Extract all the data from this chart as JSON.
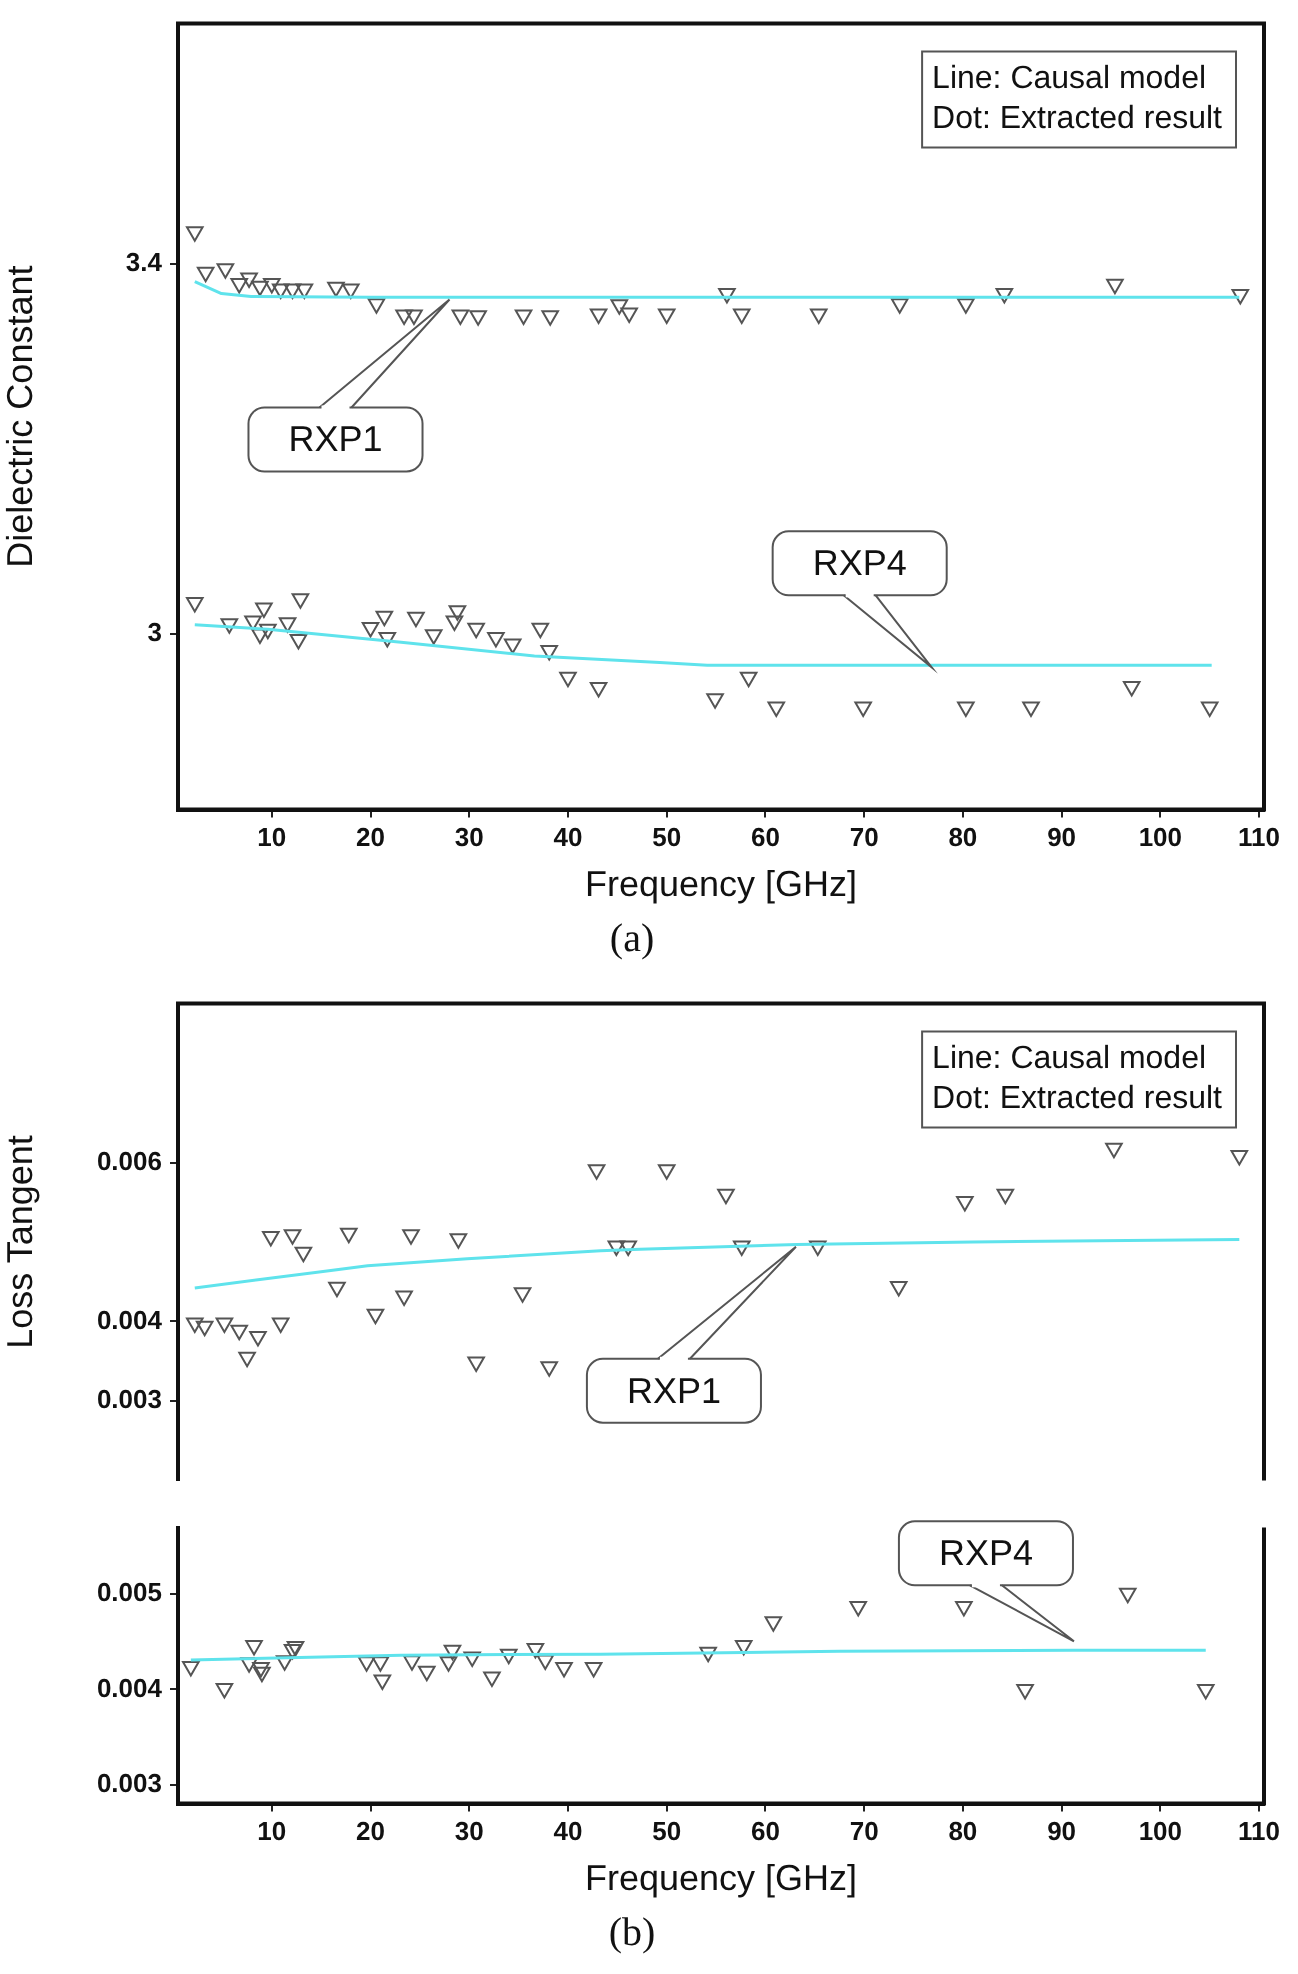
{
  "chart_data": [
    {
      "type": "scatter",
      "title": "(a)",
      "xlabel": "Frequency [GHz]",
      "ylabel": "Dielectric Constant",
      "xlim": [
        0.5,
        110.5
      ],
      "xticks": [
        10,
        20,
        30,
        40,
        50,
        60,
        70,
        80,
        90,
        100,
        110
      ],
      "ylim": [
        2.81,
        3.66
      ],
      "yticks": [
        3.0,
        3.4
      ],
      "grid": false,
      "legend": false,
      "marker": "triangle",
      "annotations": [
        "Line: Causal model",
        "Dot: Extracted result",
        "RXP1",
        "RXP4"
      ],
      "series": [
        {
          "type": "line",
          "marker": "none",
          "color": "#5fe3ec",
          "x": [
            2.2,
            4.9,
            7.9,
            20,
            108
          ],
          "values": [
            3.381,
            3.368,
            3.365,
            3.364,
            3.364
          ]
        },
        {
          "type": "line",
          "marker": "none",
          "color": "#5fe3ec",
          "x": [
            2.2,
            9.6,
            23.1,
            36.6,
            49.3,
            54.1,
            105.2
          ],
          "values": [
            3.01,
            3.005,
            2.991,
            2.976,
            2.969,
            2.966,
            2.966
          ]
        },
        {
          "color": "#555555",
          "x": [
            2.2,
            3.3,
            5.3,
            6.7,
            7.7,
            8.8,
            10.0,
            10.9,
            12.1,
            13.3,
            16.5,
            18.0,
            20.6,
            23.4,
            24.4,
            29.1,
            30.9,
            35.5,
            38.2,
            43.1,
            45.2,
            46.2,
            50.0,
            56.1,
            57.6,
            65.4,
            73.6,
            80.3,
            84.2,
            95.4,
            108.1
          ],
          "values": [
            3.435,
            3.391,
            3.395,
            3.379,
            3.385,
            3.376,
            3.379,
            3.373,
            3.373,
            3.373,
            3.375,
            3.373,
            3.357,
            3.345,
            3.345,
            3.345,
            3.344,
            3.345,
            3.344,
            3.346,
            3.356,
            3.347,
            3.346,
            3.368,
            3.346,
            3.346,
            3.357,
            3.357,
            3.368,
            3.378,
            3.367
          ]
        },
        {
          "color": "#555555",
          "x": [
            2.2,
            5.7,
            8.1,
            9.2,
            8.8,
            9.6,
            11.6,
            12.7,
            12.9,
            20.0,
            21.4,
            21.7,
            24.6,
            26.4,
            28.5,
            28.8,
            30.7,
            32.7,
            34.4,
            37.2,
            38.1,
            40.0,
            43.1,
            54.9,
            58.3,
            61.1,
            69.9,
            80.3,
            86.9,
            97.1,
            105.0
          ],
          "values": [
            3.034,
            3.011,
            3.014,
            3.028,
            3.0,
            3.005,
            3.012,
            2.994,
            3.038,
            3.007,
            3.019,
            2.996,
            3.018,
            2.999,
            3.014,
            3.025,
            3.006,
            2.996,
            2.989,
            3.006,
            2.982,
            2.953,
            2.942,
            2.93,
            2.953,
            2.921,
            2.921,
            2.921,
            2.921,
            2.943,
            2.921
          ]
        }
      ]
    },
    {
      "type": "scatter",
      "ylabel": "Loss Tangent",
      "xlim": [
        0.5,
        110.5
      ],
      "ylim": [
        0.002,
        0.008
      ],
      "yticks": [
        0.003,
        0.004,
        0.006
      ],
      "tick_labels": "y",
      "grid": false,
      "legend": false,
      "marker": "triangle",
      "annotations": [
        "Line: Causal model",
        "Dot: Extracted result",
        "RXP1"
      ],
      "series": [
        {
          "type": "line",
          "marker": "none",
          "color": "#5fe3ec",
          "x": [
            2.2,
            9.6,
            19.7,
            29.8,
            43.3,
            47.3,
            63.2,
            81.0,
            108.0
          ],
          "values": [
            0.00442,
            0.00454,
            0.0047,
            0.00479,
            0.00489,
            0.00491,
            0.00497,
            0.005,
            0.00503
          ]
        },
        {
          "color": "#555555",
          "x": [
            2.2,
            3.2,
            5.2,
            6.7,
            7.5,
            8.6,
            9.9,
            10.9,
            12.1,
            13.2,
            16.6,
            17.8,
            20.5,
            23.4,
            24.1,
            28.9,
            30.7,
            35.4,
            38.1,
            42.9,
            44.9,
            46.1,
            50.0,
            56.0,
            57.6,
            65.3,
            73.5,
            80.2,
            84.3,
            95.3,
            108.0
          ],
          "values": [
            0.00398,
            0.00394,
            0.00398,
            0.00389,
            0.00355,
            0.00381,
            0.00507,
            0.00398,
            0.00509,
            0.00487,
            0.00443,
            0.00511,
            0.00409,
            0.00432,
            0.00509,
            0.00504,
            0.00349,
            0.00436,
            0.00343,
            0.00591,
            0.00495,
            0.00495,
            0.00591,
            0.0056,
            0.00495,
            0.00495,
            0.00444,
            0.00551,
            0.0056,
            0.00618,
            0.00609
          ]
        }
      ]
    },
    {
      "type": "scatter",
      "title": "(b)",
      "xlabel": "Frequency [GHz]",
      "xlim": [
        0.5,
        110.5
      ],
      "xticks": [
        10,
        20,
        30,
        40,
        50,
        60,
        70,
        80,
        90,
        100,
        110
      ],
      "ylim": [
        0.0028,
        0.0057
      ],
      "yticks": [
        0.003,
        0.004,
        0.005
      ],
      "grid": false,
      "legend": false,
      "marker": "triangle",
      "annotations": [
        "RXP4"
      ],
      "series": [
        {
          "type": "line",
          "marker": "none",
          "color": "#5fe3ec",
          "x": [
            1.8,
            23.1,
            43.3,
            67.5,
            91.1,
            104.6
          ],
          "values": [
            0.00431,
            0.00436,
            0.00437,
            0.0044,
            0.00441,
            0.00441
          ]
        },
        {
          "color": "#555555",
          "x": [
            1.8,
            5.2,
            7.7,
            8.2,
            8.9,
            9.0,
            11.3,
            12.1,
            12.4,
            19.6,
            21.0,
            21.2,
            24.2,
            25.7,
            27.9,
            28.3,
            30.3,
            32.3,
            34.0,
            36.7,
            37.7,
            39.6,
            42.6,
            54.2,
            57.8,
            60.8,
            69.4,
            80.1,
            86.3,
            96.7,
            104.6
          ],
          "values": [
            0.00424,
            0.00401,
            0.00428,
            0.00446,
            0.00423,
            0.00418,
            0.0043,
            0.00442,
            0.00445,
            0.00429,
            0.00429,
            0.0041,
            0.0043,
            0.00419,
            0.00429,
            0.00441,
            0.00434,
            0.00413,
            0.00437,
            0.00443,
            0.00431,
            0.00423,
            0.00423,
            0.00439,
            0.00446,
            0.00471,
            0.00487,
            0.00487,
            0.004,
            0.00501,
            0.004
          ]
        }
      ]
    }
  ]
}
